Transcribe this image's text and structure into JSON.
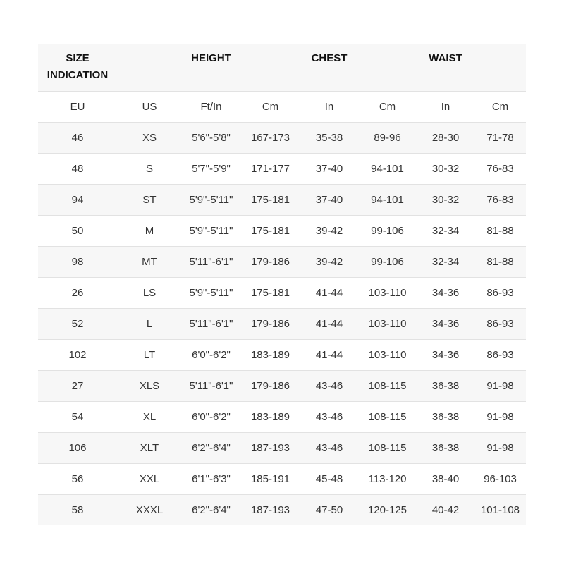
{
  "header": {
    "size_indication": "SIZE INDICATION",
    "height": "HEIGHT",
    "chest": "CHEST",
    "waist": "WAIST"
  },
  "units": [
    "EU",
    "US",
    "Ft/In",
    "Cm",
    "In",
    "Cm",
    "In",
    "Cm"
  ],
  "rows": [
    [
      "46",
      "XS",
      "5'6\"-5'8\"",
      "167-173",
      "35-38",
      "89-96",
      "28-30",
      "71-78"
    ],
    [
      "48",
      "S",
      "5'7\"-5'9\"",
      "171-177",
      "37-40",
      "94-101",
      "30-32",
      "76-83"
    ],
    [
      "94",
      "ST",
      "5'9\"-5'11\"",
      "175-181",
      "37-40",
      "94-101",
      "30-32",
      "76-83"
    ],
    [
      "50",
      "M",
      "5'9\"-5'11\"",
      "175-181",
      "39-42",
      "99-106",
      "32-34",
      "81-88"
    ],
    [
      "98",
      "MT",
      "5'11\"-6'1\"",
      "179-186",
      "39-42",
      "99-106",
      "32-34",
      "81-88"
    ],
    [
      "26",
      "LS",
      "5'9\"-5'11\"",
      "175-181",
      "41-44",
      "103-110",
      "34-36",
      "86-93"
    ],
    [
      "52",
      "L",
      "5'11\"-6'1\"",
      "179-186",
      "41-44",
      "103-110",
      "34-36",
      "86-93"
    ],
    [
      "102",
      "LT",
      "6'0\"-6'2\"",
      "183-189",
      "41-44",
      "103-110",
      "34-36",
      "86-93"
    ],
    [
      "27",
      "XLS",
      "5'11\"-6'1\"",
      "179-186",
      "43-46",
      "108-115",
      "36-38",
      "91-98"
    ],
    [
      "54",
      "XL",
      "6'0\"-6'2\"",
      "183-189",
      "43-46",
      "108-115",
      "36-38",
      "91-98"
    ],
    [
      "106",
      "XLT",
      "6'2\"-6'4\"",
      "187-193",
      "43-46",
      "108-115",
      "36-38",
      "91-98"
    ],
    [
      "56",
      "XXL",
      "6'1\"-6'3\"",
      "185-191",
      "45-48",
      "113-120",
      "38-40",
      "96-103"
    ],
    [
      "58",
      "XXXL",
      "6'2\"-6'4\"",
      "187-193",
      "47-50",
      "120-125",
      "40-42",
      "101-108"
    ]
  ],
  "colors": {
    "header_bg": "#f7f7f7",
    "stripe_bg": "#f7f7f7",
    "divider": "#e2e2e2",
    "text": "#333333"
  }
}
